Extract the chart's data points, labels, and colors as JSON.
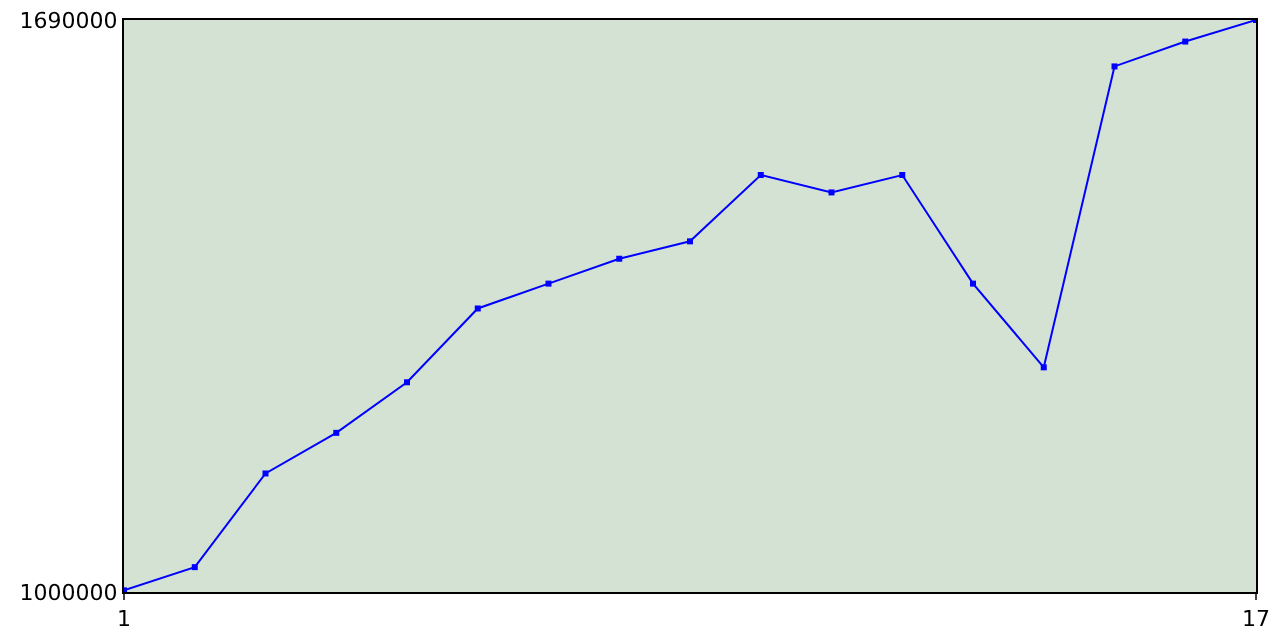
{
  "chart_data": {
    "type": "line",
    "x": [
      1,
      2,
      3,
      4,
      5,
      6,
      7,
      8,
      9,
      10,
      11,
      12,
      13,
      14,
      15,
      16,
      17
    ],
    "series": [
      {
        "color": "#0000ff",
        "values": [
          1002000,
          1030000,
          1143000,
          1192000,
          1253000,
          1342000,
          1372000,
          1402000,
          1423000,
          1503000,
          1482000,
          1503000,
          1372000,
          1271000,
          1634000,
          1664000,
          1690000
        ]
      }
    ],
    "xlim": [
      1,
      17
    ],
    "xticks": [
      1,
      17
    ],
    "ylim": [
      1000000,
      1690000
    ],
    "yticks": [
      1000000,
      1690000
    ],
    "legend": false,
    "marker": "square",
    "line_style": "solid"
  }
}
